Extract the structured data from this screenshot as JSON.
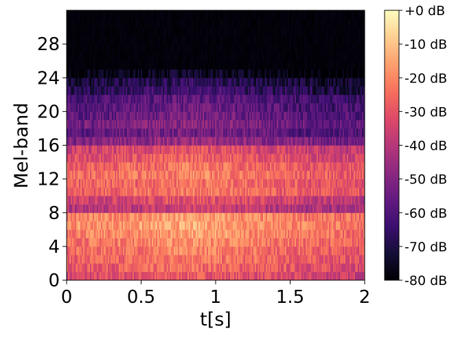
{
  "chart_data": {
    "type": "heatmap",
    "title": "",
    "xlabel": "t[s]",
    "ylabel": "Mel-band",
    "x_range": [
      0,
      2
    ],
    "y_range": [
      0,
      32
    ],
    "x_ticks": [
      {
        "value": 0,
        "label": "0"
      },
      {
        "value": 0.5,
        "label": "0.5"
      },
      {
        "value": 1,
        "label": "1"
      },
      {
        "value": 1.5,
        "label": "1.5"
      },
      {
        "value": 2,
        "label": "2"
      }
    ],
    "y_ticks": [
      {
        "value": 0,
        "label": "0"
      },
      {
        "value": 4,
        "label": "4"
      },
      {
        "value": 8,
        "label": "8"
      },
      {
        "value": 12,
        "label": "12"
      },
      {
        "value": 16,
        "label": "16"
      },
      {
        "value": 20,
        "label": "20"
      },
      {
        "value": 24,
        "label": "24"
      },
      {
        "value": 28,
        "label": "28"
      }
    ],
    "colorbar": {
      "colormap": "magma",
      "range_db": [
        -80,
        0
      ],
      "ticks": [
        {
          "value": 0,
          "label": "+0 dB"
        },
        {
          "value": -10,
          "label": "-10 dB"
        },
        {
          "value": -20,
          "label": "-20 dB"
        },
        {
          "value": -30,
          "label": "-30 dB"
        },
        {
          "value": -40,
          "label": "-40 dB"
        },
        {
          "value": -50,
          "label": "-50 dB"
        },
        {
          "value": -60,
          "label": "-60 dB"
        },
        {
          "value": -70,
          "label": "-70 dB"
        },
        {
          "value": -80,
          "label": "-80 dB"
        }
      ]
    },
    "mel_bands": 32,
    "band_level_db": [
      -28,
      -24,
      -22,
      -20,
      -18,
      -16,
      -14,
      -16,
      -35,
      -30,
      -22,
      -22,
      -20,
      -22,
      -26,
      -30,
      -45,
      -52,
      -48,
      -52,
      -54,
      -56,
      -62,
      -66,
      -74,
      -80,
      -80,
      -80,
      -80,
      -80,
      -80,
      -80
    ],
    "time_envelope_db": [
      {
        "t": 0.0,
        "gain_db": -6
      },
      {
        "t": 0.5,
        "gain_db": -3
      },
      {
        "t": 0.85,
        "gain_db": 0
      },
      {
        "t": 1.2,
        "gain_db": -3
      },
      {
        "t": 1.6,
        "gain_db": -7
      },
      {
        "t": 2.0,
        "gain_db": -9
      }
    ]
  }
}
